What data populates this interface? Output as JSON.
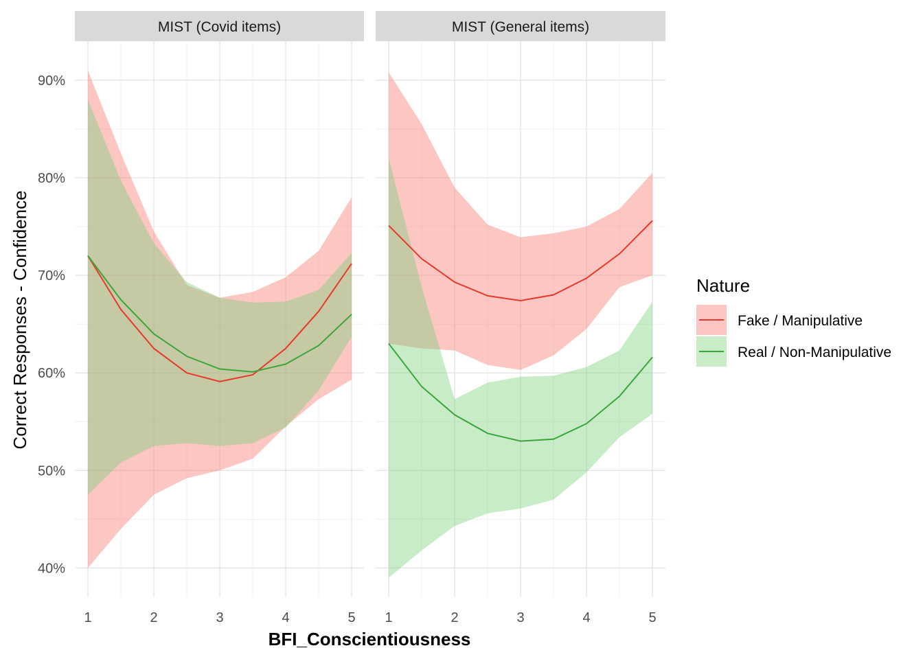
{
  "chart_data": {
    "type": "line",
    "ylabel": "Correct Responses - Confidence",
    "xlabel": "BFI_Conscientiousness",
    "x_ticks": [
      "1",
      "2",
      "3",
      "4",
      "5"
    ],
    "y_ticks": [
      "40%",
      "50%",
      "60%",
      "70%",
      "80%",
      "90%"
    ],
    "xlim": [
      1,
      5
    ],
    "ylim": [
      0.37,
      0.94
    ],
    "grid": true,
    "legend": {
      "title": "Nature",
      "position": "right",
      "entries": [
        {
          "label": "Fake / Manipulative",
          "color": "#E8382B",
          "fill": "#F8766D"
        },
        {
          "label": "Real / Non-Manipulative",
          "color": "#3BA53B",
          "fill": "#7CCF7C"
        }
      ]
    },
    "panels": [
      {
        "title": "MIST (Covid items)",
        "series": [
          {
            "name": "Fake / Manipulative",
            "x": [
              1,
              1.5,
              2,
              2.5,
              3,
              3.5,
              4,
              4.5,
              5
            ],
            "y": [
              0.72,
              0.665,
              0.625,
              0.6,
              0.591,
              0.598,
              0.625,
              0.663,
              0.712
            ],
            "lower": [
              0.4,
              0.44,
              0.475,
              0.492,
              0.5,
              0.512,
              0.545,
              0.573,
              0.593
            ],
            "upper": [
              0.91,
              0.825,
              0.745,
              0.69,
              0.677,
              0.683,
              0.698,
              0.725,
              0.78
            ]
          },
          {
            "name": "Real / Non-Manipulative",
            "x": [
              1,
              1.5,
              2,
              2.5,
              3,
              3.5,
              4,
              4.5,
              5
            ],
            "y": [
              0.72,
              0.675,
              0.64,
              0.617,
              0.604,
              0.601,
              0.609,
              0.628,
              0.66
            ],
            "lower": [
              0.475,
              0.508,
              0.525,
              0.528,
              0.525,
              0.528,
              0.544,
              0.582,
              0.637
            ],
            "upper": [
              0.88,
              0.797,
              0.733,
              0.693,
              0.677,
              0.672,
              0.673,
              0.685,
              0.723
            ]
          }
        ]
      },
      {
        "title": "MIST (General items)",
        "series": [
          {
            "name": "Fake / Manipulative",
            "x": [
              1,
              1.5,
              2,
              2.5,
              3,
              3.5,
              4,
              4.5,
              5
            ],
            "y": [
              0.751,
              0.717,
              0.693,
              0.679,
              0.674,
              0.68,
              0.697,
              0.722,
              0.756
            ],
            "lower": [
              0.63,
              0.625,
              0.623,
              0.608,
              0.603,
              0.618,
              0.645,
              0.688,
              0.7
            ],
            "upper": [
              0.908,
              0.855,
              0.79,
              0.752,
              0.739,
              0.743,
              0.75,
              0.768,
              0.805
            ]
          },
          {
            "name": "Real / Non-Manipulative",
            "x": [
              1,
              1.5,
              2,
              2.5,
              3,
              3.5,
              4,
              4.5,
              5
            ],
            "y": [
              0.63,
              0.586,
              0.557,
              0.538,
              0.53,
              0.532,
              0.548,
              0.576,
              0.616
            ],
            "lower": [
              0.39,
              0.418,
              0.443,
              0.456,
              0.461,
              0.47,
              0.498,
              0.534,
              0.558
            ],
            "upper": [
              0.82,
              0.688,
              0.573,
              0.59,
              0.596,
              0.597,
              0.606,
              0.623,
              0.673
            ]
          }
        ]
      }
    ]
  }
}
